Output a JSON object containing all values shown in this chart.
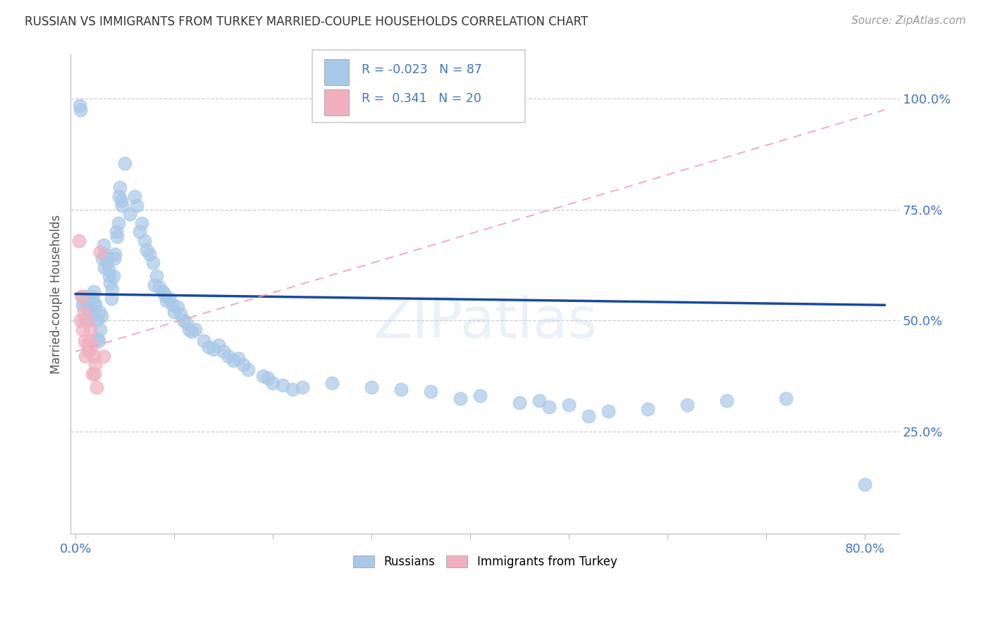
{
  "title": "RUSSIAN VS IMMIGRANTS FROM TURKEY MARRIED-COUPLE HOUSEHOLDS CORRELATION CHART",
  "source": "Source: ZipAtlas.com",
  "ylabel": "Married-couple Households",
  "x_tick_labels_shown": [
    "0.0%",
    "80.0%"
  ],
  "x_tick_values": [
    0.0,
    0.1,
    0.2,
    0.3,
    0.4,
    0.5,
    0.6,
    0.7,
    0.8
  ],
  "y_tick_labels": [
    "100.0%",
    "75.0%",
    "50.0%",
    "25.0%"
  ],
  "y_tick_values": [
    1.0,
    0.75,
    0.5,
    0.25
  ],
  "xlim": [
    -0.005,
    0.835
  ],
  "ylim": [
    0.02,
    1.1
  ],
  "blue_color": "#a8c8e8",
  "pink_color": "#f0b0c0",
  "trendline_blue": "#1a4a9a",
  "trendline_pink": "#e8a0b0",
  "blue_scatter": [
    [
      0.004,
      0.985
    ],
    [
      0.005,
      0.975
    ],
    [
      0.006,
      0.555
    ],
    [
      0.007,
      0.535
    ],
    [
      0.008,
      0.545
    ],
    [
      0.009,
      0.5
    ],
    [
      0.01,
      0.555
    ],
    [
      0.011,
      0.545
    ],
    [
      0.012,
      0.535
    ],
    [
      0.013,
      0.52
    ],
    [
      0.014,
      0.5
    ],
    [
      0.015,
      0.525
    ],
    [
      0.016,
      0.515
    ],
    [
      0.017,
      0.555
    ],
    [
      0.018,
      0.565
    ],
    [
      0.019,
      0.54
    ],
    [
      0.02,
      0.535
    ],
    [
      0.021,
      0.5
    ],
    [
      0.022,
      0.46
    ],
    [
      0.023,
      0.455
    ],
    [
      0.024,
      0.52
    ],
    [
      0.025,
      0.48
    ],
    [
      0.026,
      0.51
    ],
    [
      0.027,
      0.64
    ],
    [
      0.028,
      0.67
    ],
    [
      0.029,
      0.62
    ],
    [
      0.03,
      0.65
    ],
    [
      0.031,
      0.64
    ],
    [
      0.032,
      0.63
    ],
    [
      0.033,
      0.615
    ],
    [
      0.034,
      0.6
    ],
    [
      0.035,
      0.585
    ],
    [
      0.036,
      0.55
    ],
    [
      0.037,
      0.57
    ],
    [
      0.038,
      0.6
    ],
    [
      0.039,
      0.64
    ],
    [
      0.04,
      0.65
    ],
    [
      0.041,
      0.7
    ],
    [
      0.042,
      0.69
    ],
    [
      0.043,
      0.72
    ],
    [
      0.044,
      0.78
    ],
    [
      0.045,
      0.8
    ],
    [
      0.046,
      0.77
    ],
    [
      0.047,
      0.76
    ],
    [
      0.05,
      0.855
    ],
    [
      0.055,
      0.74
    ],
    [
      0.06,
      0.78
    ],
    [
      0.062,
      0.76
    ],
    [
      0.065,
      0.7
    ],
    [
      0.067,
      0.72
    ],
    [
      0.07,
      0.68
    ],
    [
      0.072,
      0.66
    ],
    [
      0.075,
      0.65
    ],
    [
      0.078,
      0.63
    ],
    [
      0.08,
      0.58
    ],
    [
      0.082,
      0.6
    ],
    [
      0.085,
      0.575
    ],
    [
      0.088,
      0.565
    ],
    [
      0.09,
      0.56
    ],
    [
      0.092,
      0.545
    ],
    [
      0.095,
      0.55
    ],
    [
      0.098,
      0.535
    ],
    [
      0.1,
      0.52
    ],
    [
      0.103,
      0.53
    ],
    [
      0.106,
      0.515
    ],
    [
      0.109,
      0.5
    ],
    [
      0.112,
      0.495
    ],
    [
      0.115,
      0.48
    ],
    [
      0.118,
      0.475
    ],
    [
      0.121,
      0.48
    ],
    [
      0.13,
      0.455
    ],
    [
      0.135,
      0.44
    ],
    [
      0.14,
      0.435
    ],
    [
      0.145,
      0.445
    ],
    [
      0.15,
      0.43
    ],
    [
      0.155,
      0.42
    ],
    [
      0.16,
      0.41
    ],
    [
      0.165,
      0.415
    ],
    [
      0.17,
      0.4
    ],
    [
      0.175,
      0.39
    ],
    [
      0.19,
      0.375
    ],
    [
      0.195,
      0.37
    ],
    [
      0.2,
      0.36
    ],
    [
      0.21,
      0.355
    ],
    [
      0.22,
      0.345
    ],
    [
      0.23,
      0.35
    ],
    [
      0.26,
      0.36
    ],
    [
      0.3,
      0.35
    ],
    [
      0.33,
      0.345
    ],
    [
      0.36,
      0.34
    ],
    [
      0.39,
      0.325
    ],
    [
      0.41,
      0.33
    ],
    [
      0.45,
      0.315
    ],
    [
      0.47,
      0.32
    ],
    [
      0.48,
      0.305
    ],
    [
      0.5,
      0.31
    ],
    [
      0.52,
      0.285
    ],
    [
      0.54,
      0.295
    ],
    [
      0.58,
      0.3
    ],
    [
      0.62,
      0.31
    ],
    [
      0.66,
      0.32
    ],
    [
      0.72,
      0.325
    ],
    [
      0.8,
      0.13
    ]
  ],
  "pink_scatter": [
    [
      0.003,
      0.68
    ],
    [
      0.005,
      0.5
    ],
    [
      0.006,
      0.555
    ],
    [
      0.007,
      0.48
    ],
    [
      0.008,
      0.52
    ],
    [
      0.009,
      0.455
    ],
    [
      0.01,
      0.42
    ],
    [
      0.011,
      0.5
    ],
    [
      0.012,
      0.445
    ],
    [
      0.013,
      0.43
    ],
    [
      0.014,
      0.455
    ],
    [
      0.015,
      0.48
    ],
    [
      0.016,
      0.44
    ],
    [
      0.017,
      0.38
    ],
    [
      0.018,
      0.42
    ],
    [
      0.019,
      0.38
    ],
    [
      0.02,
      0.4
    ],
    [
      0.021,
      0.35
    ],
    [
      0.025,
      0.655
    ],
    [
      0.028,
      0.42
    ]
  ],
  "blue_trend_x": [
    0.0,
    0.82
  ],
  "blue_trend_y": [
    0.56,
    0.535
  ],
  "pink_trend_x": [
    0.0,
    0.82
  ],
  "pink_trend_y": [
    0.43,
    0.975
  ],
  "watermark": "ZIPatlas",
  "background_color": "#ffffff",
  "grid_color": "#cccccc",
  "title_color": "#333333",
  "tick_color": "#4472c4",
  "legend_text_color": "#4472c4"
}
